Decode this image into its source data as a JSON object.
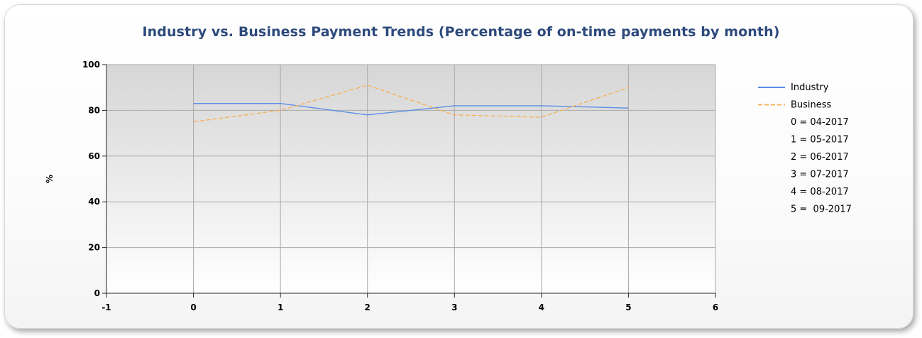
{
  "chart_data": {
    "type": "line",
    "title": "Industry vs. Business Payment Trends (Percentage of on-time payments by month)",
    "xlabel": "",
    "ylabel": "%",
    "xlim": [
      -1,
      6
    ],
    "ylim": [
      0,
      100
    ],
    "x_ticks": [
      -1,
      0,
      1,
      2,
      3,
      4,
      5,
      6
    ],
    "y_ticks": [
      0,
      20,
      40,
      60,
      80,
      100
    ],
    "x": [
      0,
      1,
      2,
      3,
      4,
      5
    ],
    "grid": true,
    "legend_placement": "right",
    "series": [
      {
        "name": "Industry",
        "values": [
          83,
          83,
          78,
          82,
          82,
          81
        ],
        "color": "#5b8ee6",
        "dash": "solid"
      },
      {
        "name": "Business",
        "values": [
          75,
          80,
          91,
          78,
          77,
          90
        ],
        "color": "#f5b25a",
        "dash": "dashed"
      }
    ],
    "legend_notes": [
      "0 = 04-2017",
      "1 = 05-2017",
      "2 = 06-2017",
      "3 = 07-2017",
      "4 = 08-2017",
      "5 =  09-2017"
    ]
  }
}
